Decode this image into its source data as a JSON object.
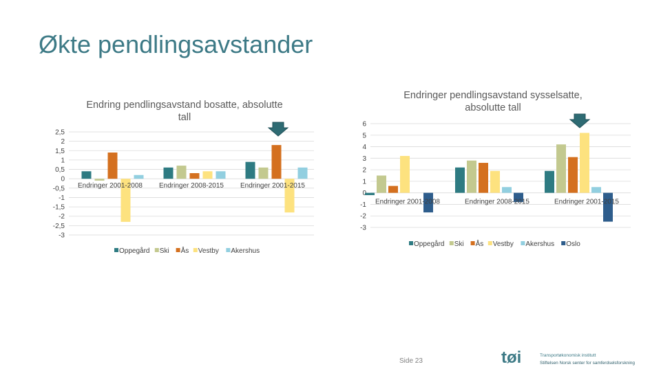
{
  "slide": {
    "title": "Økte pendlingsavstander",
    "page_label": "Side 23",
    "logo_mark": "tøi",
    "org_line1": "Transportøkonomisk institutt",
    "org_line2": "Stiftelsen Norsk senter for samferdselsforskning"
  },
  "colors": {
    "Oppegård": "#2e7b82",
    "Ski": "#c3c98f",
    "Ås": "#d4701f",
    "Vestby": "#fde27f",
    "Akershus": "#92cfe0",
    "Oslo": "#2e5d8c",
    "arrow": "#2e6b73",
    "title": "#3d7a86"
  },
  "chart_data": [
    {
      "type": "bar",
      "title": "Endring pendlingsavstand bosatte, absolutte tall",
      "title_lines": [
        "Endring pendlingsavstand bosatte, absolutte",
        "tall"
      ],
      "categories": [
        "Endringer 2001-2008",
        "Endringer 2008-2015",
        "Endringer 2001-2015"
      ],
      "series": [
        {
          "name": "Oppegård",
          "values": [
            0.4,
            0.6,
            0.9
          ]
        },
        {
          "name": "Ski",
          "values": [
            -0.1,
            0.7,
            0.6
          ]
        },
        {
          "name": "Ås",
          "values": [
            1.4,
            0.3,
            1.8
          ]
        },
        {
          "name": "Vestby",
          "values": [
            -2.3,
            0.4,
            -1.8
          ]
        },
        {
          "name": "Akershus",
          "values": [
            0.2,
            0.4,
            0.6
          ]
        }
      ],
      "ylim": [
        -3,
        2.5
      ],
      "yticks": [
        "2,5",
        "2",
        "1,5",
        "1",
        "0,5",
        "0",
        "-0,5",
        "-1",
        "-1,5",
        "-2",
        "-2,5",
        "-3"
      ],
      "ytick_values": [
        2.5,
        2,
        1.5,
        1,
        0.5,
        0,
        -0.5,
        -1,
        -1.5,
        -2,
        -2.5,
        -3
      ],
      "legend_position": "bottom",
      "highlight_category": 2
    },
    {
      "type": "bar",
      "title": "Endringer pendlingsavstand sysselsatte, absolutte tall",
      "title_lines": [
        "Endringer pendlingsavstand sysselsatte,",
        "absolutte tall"
      ],
      "categories": [
        "Endringer 2001-2008",
        "Endringer 2008-2015",
        "Endringer 2001-2015"
      ],
      "series": [
        {
          "name": "Oppegård",
          "values": [
            -0.2,
            2.2,
            1.9
          ]
        },
        {
          "name": "Ski",
          "values": [
            1.5,
            2.8,
            4.2
          ]
        },
        {
          "name": "Ås",
          "values": [
            0.6,
            2.6,
            3.1
          ]
        },
        {
          "name": "Vestby",
          "values": [
            3.2,
            1.9,
            5.2
          ]
        },
        {
          "name": "Akershus",
          "values": [
            0.0,
            0.5,
            0.5
          ]
        },
        {
          "name": "Oslo",
          "values": [
            -1.7,
            -0.8,
            -2.5
          ]
        }
      ],
      "ylim": [
        -3,
        6
      ],
      "yticks": [
        "6",
        "5",
        "4",
        "3",
        "2",
        "1",
        "0",
        "-1",
        "-2",
        "-3"
      ],
      "ytick_values": [
        6,
        5,
        4,
        3,
        2,
        1,
        0,
        -1,
        -2,
        -3
      ],
      "legend_position": "bottom",
      "highlight_category": 2
    }
  ]
}
